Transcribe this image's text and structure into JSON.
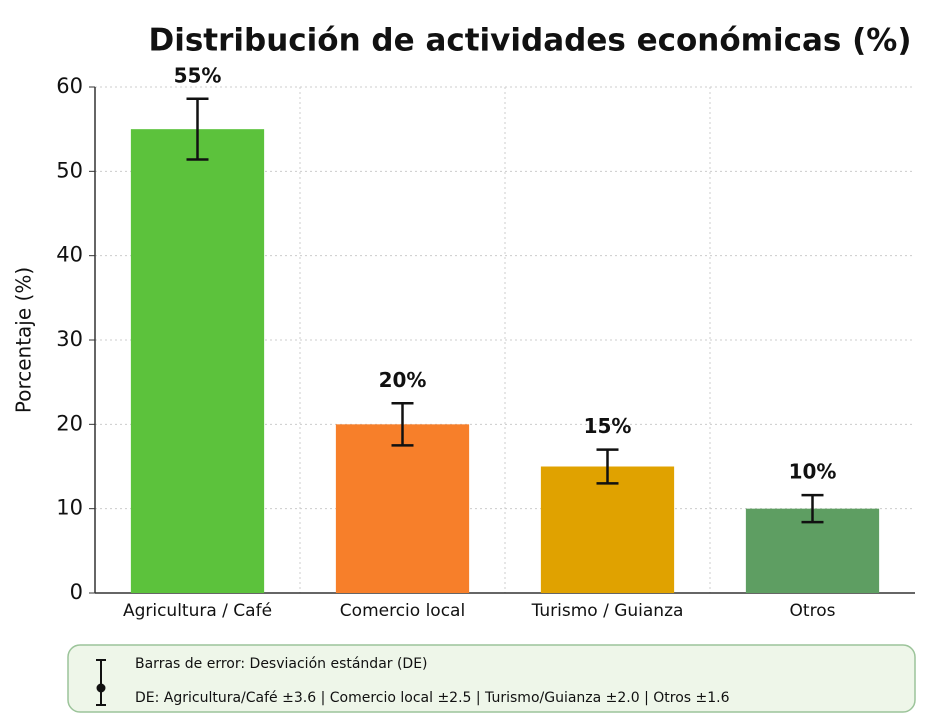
{
  "chart_data": {
    "type": "bar",
    "title": "Distribución de actividades económicas (%)",
    "y_label": "Porcentaje (%)",
    "categories": [
      "Agricultura / Café",
      "Comercio local",
      "Turismo / Guianza",
      "Otros"
    ],
    "values": [
      55,
      20,
      15,
      10
    ],
    "value_labels": [
      "55%",
      "20%",
      "15%",
      "10%"
    ],
    "errors": [
      3.6,
      2.5,
      2.0,
      1.6
    ],
    "colors": [
      "#5cc23c",
      "#f77f2a",
      "#e0a200",
      "#5e9e62"
    ],
    "ylim": [
      0,
      60
    ],
    "yticks": [
      0,
      10,
      20,
      30,
      40,
      50,
      60
    ],
    "grid": true,
    "notes": [
      "Barras de error: Desviación estándar (DE)",
      "DE: Agricultura/Café ±3.6  |  Comercio local ±2.5  |  Turismo/Guianza ±2.0  |  Otros ±1.6"
    ]
  }
}
